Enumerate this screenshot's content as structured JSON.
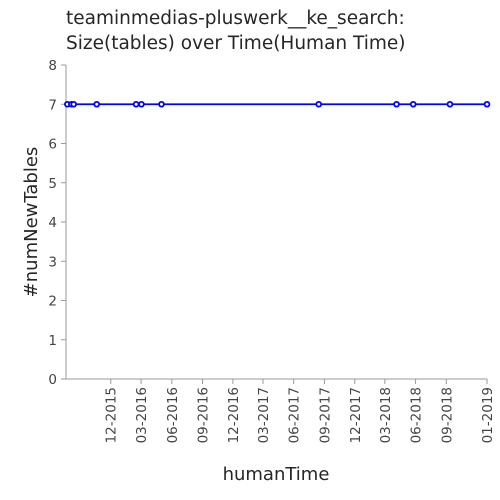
{
  "chart_data": {
    "type": "line",
    "title": [
      "teaminmedias-pluswerk__ke_search:",
      "Size(tables) over Time(Human Time)"
    ],
    "xlabel": "humanTime",
    "ylabel": "#numNewTables",
    "ylim": [
      0,
      8
    ],
    "yticks": [
      0,
      1,
      2,
      3,
      4,
      5,
      6,
      7,
      8
    ],
    "xlim": [
      "2015-07-20",
      "2019-01-01"
    ],
    "xticks": [
      {
        "label": "12-2015",
        "date": "2015-12-01"
      },
      {
        "label": "03-2016",
        "date": "2016-03-01"
      },
      {
        "label": "06-2016",
        "date": "2016-06-01"
      },
      {
        "label": "09-2016",
        "date": "2016-09-01"
      },
      {
        "label": "12-2016",
        "date": "2016-12-01"
      },
      {
        "label": "03-2017",
        "date": "2017-03-01"
      },
      {
        "label": "06-2017",
        "date": "2017-06-01"
      },
      {
        "label": "09-2017",
        "date": "2017-09-01"
      },
      {
        "label": "12-2017",
        "date": "2017-12-01"
      },
      {
        "label": "03-2018",
        "date": "2018-03-01"
      },
      {
        "label": "06-2018",
        "date": "2018-06-01"
      },
      {
        "label": "09-2018",
        "date": "2018-09-01"
      },
      {
        "label": "01-2019",
        "date": "2019-01-01"
      }
    ],
    "series": [
      {
        "color": "#0000ff",
        "points": [
          {
            "x": "2015-07-24",
            "y": 7
          },
          {
            "x": "2015-08-05",
            "y": 7
          },
          {
            "x": "2015-08-12",
            "y": 7
          },
          {
            "x": "2015-10-20",
            "y": 7
          },
          {
            "x": "2016-02-15",
            "y": 7
          },
          {
            "x": "2016-03-02",
            "y": 7
          },
          {
            "x": "2016-05-01",
            "y": 7
          },
          {
            "x": "2017-08-15",
            "y": 7
          },
          {
            "x": "2018-04-05",
            "y": 7
          },
          {
            "x": "2018-05-25",
            "y": 7
          },
          {
            "x": "2018-09-12",
            "y": 7
          },
          {
            "x": "2019-01-01",
            "y": 7
          }
        ]
      }
    ],
    "grid": false,
    "legend": "none"
  }
}
